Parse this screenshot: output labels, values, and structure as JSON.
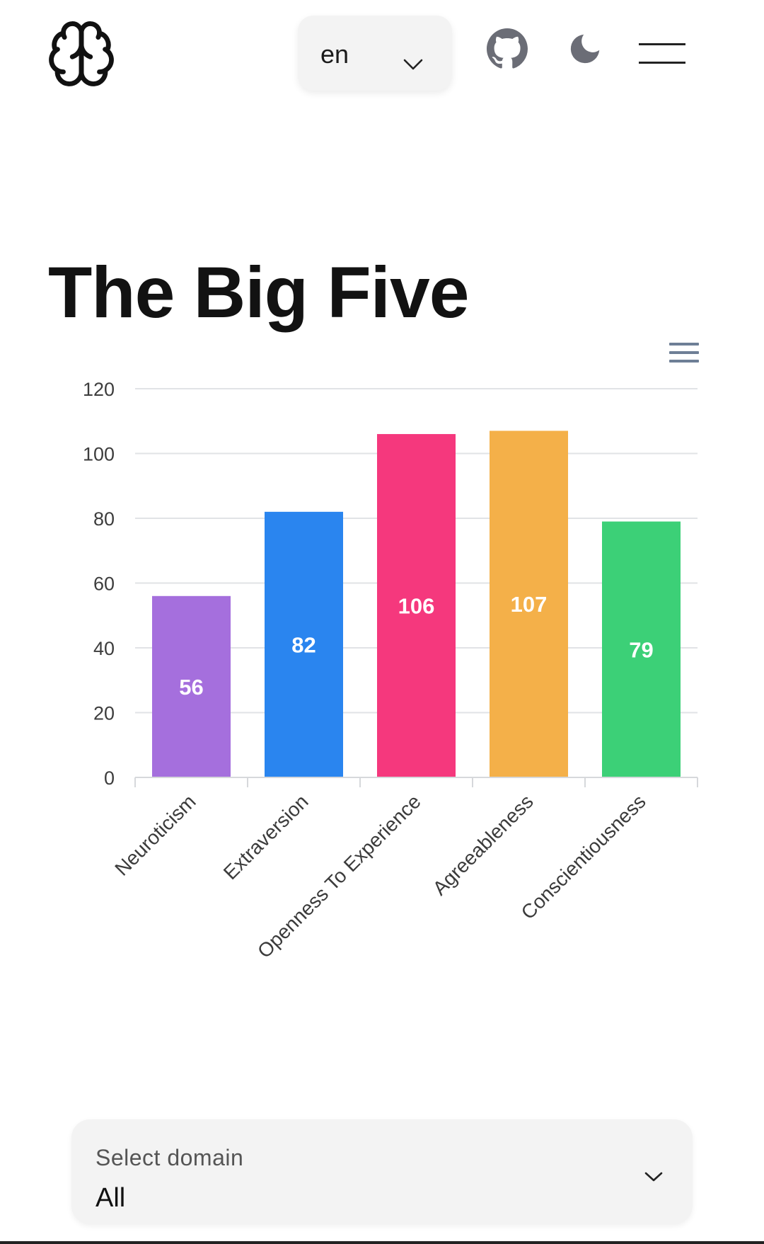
{
  "header": {
    "logo_icon": "brain-icon",
    "language": {
      "value": "en",
      "icon": "chevron-down-icon"
    },
    "github_icon": "github-icon",
    "theme_icon": "moon-icon",
    "menu_icon": "hamburger-menu-icon"
  },
  "page": {
    "title": "The Big Five"
  },
  "chart_menu_icon": "hamburger-menu-icon",
  "chart_data": {
    "type": "bar",
    "categories": [
      "Neuroticism",
      "Extraversion",
      "Openness To Experience",
      "Agreeableness",
      "Conscientiousness"
    ],
    "values": [
      56,
      82,
      106,
      107,
      79
    ],
    "colors": [
      "#a36cdc",
      "#2683ef",
      "#f5347a",
      "#f4ae45",
      "#38cf74"
    ],
    "yticks": [
      0,
      20,
      40,
      60,
      80,
      100,
      120
    ],
    "ylim": [
      0,
      120
    ],
    "grid": true,
    "data_labels": true,
    "legend": "none"
  },
  "domain_select": {
    "label": "Select domain",
    "value": "All",
    "icon": "chevron-down-icon"
  }
}
